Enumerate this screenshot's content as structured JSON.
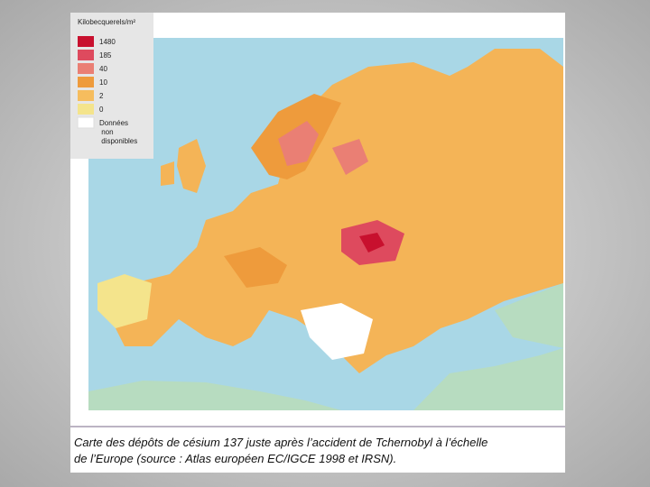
{
  "legend": {
    "title": "Kilobecquerels/m²",
    "items": [
      {
        "label": "1480",
        "color": "#c8102e"
      },
      {
        "label": "185",
        "color": "#de4a5e"
      },
      {
        "label": "40",
        "color": "#ea7f74"
      },
      {
        "label": "10",
        "color": "#ee9b3c"
      },
      {
        "label": "2",
        "color": "#f6bd5e"
      },
      {
        "label": "0",
        "color": "#f4e48c"
      },
      {
        "label": "Données non disponibles",
        "color": "#ffffff"
      }
    ]
  },
  "caption": {
    "lines": [
      "Carte des dépôts de césium 137 juste après l’accident de Tchernobyl à l’échelle",
      "de l’Europe (source : Atlas européen EC/IGCE 1998 et IRSN)."
    ]
  }
}
